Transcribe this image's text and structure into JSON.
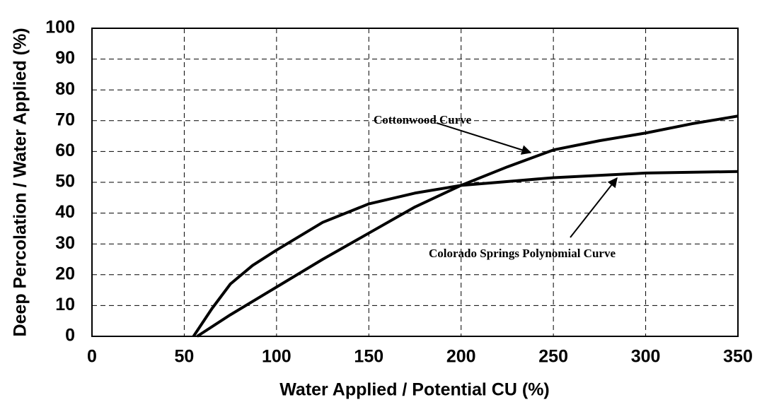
{
  "chart_data": {
    "type": "line",
    "xlabel": "Water Applied / Potential CU  (%)",
    "ylabel": "Deep Percolation / Water Applied  (%)",
    "series": [
      {
        "name": "Cottonwood Curve",
        "color": "#000000",
        "x": [
          57,
          75,
          100,
          125,
          150,
          175,
          200,
          225,
          250,
          275,
          300,
          325,
          350
        ],
        "values": [
          0,
          7,
          16,
          25,
          33.5,
          42,
          49,
          55,
          60.5,
          63.5,
          66,
          69,
          71.5
        ]
      },
      {
        "name": "Colorado Springs Polynomial Curve",
        "color": "#000000",
        "x": [
          55,
          65,
          75,
          87,
          100,
          125,
          150,
          175,
          200,
          250,
          300,
          350
        ],
        "values": [
          0,
          9,
          17,
          23,
          28,
          37,
          43,
          46.5,
          49,
          51.5,
          53,
          53.5
        ]
      }
    ],
    "xlim": [
      0,
      350
    ],
    "xticks": [
      0,
      50,
      100,
      150,
      200,
      250,
      300,
      350
    ],
    "ylim": [
      0,
      100
    ],
    "yticks": [
      0,
      10,
      20,
      30,
      40,
      50,
      60,
      70,
      80,
      90,
      100
    ],
    "grid": true
  }
}
